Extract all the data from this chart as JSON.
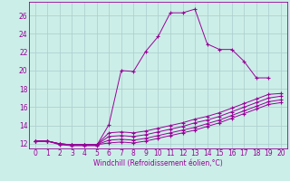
{
  "xlabel": "Windchill (Refroidissement éolien,°C)",
  "bg_color": "#cceee8",
  "grid_color": "#aacccc",
  "line_color": "#990099",
  "xlim": [
    -0.5,
    20.5
  ],
  "ylim": [
    11.5,
    27.5
  ],
  "xticks": [
    0,
    1,
    2,
    3,
    4,
    5,
    6,
    7,
    8,
    9,
    10,
    11,
    12,
    13,
    14,
    15,
    16,
    17,
    18,
    19,
    20
  ],
  "yticks": [
    12,
    14,
    16,
    18,
    20,
    22,
    24,
    26
  ],
  "line1_x": [
    0,
    1,
    2,
    3,
    4,
    5,
    6,
    7,
    8,
    9,
    10,
    11,
    12,
    13,
    14,
    15,
    16,
    17,
    18,
    19
  ],
  "line1_y": [
    12.3,
    12.3,
    11.9,
    11.8,
    11.8,
    11.8,
    14.1,
    20.0,
    19.9,
    22.1,
    23.7,
    26.3,
    26.3,
    26.7,
    22.9,
    22.3,
    22.3,
    21.0,
    19.2,
    19.2
  ],
  "line2_x": [
    0,
    1,
    2,
    3,
    4,
    5,
    6,
    7,
    8,
    9,
    10,
    11,
    12,
    13,
    14,
    15,
    16,
    17,
    18,
    19,
    20
  ],
  "line2_y": [
    12.3,
    12.3,
    12.0,
    11.9,
    11.9,
    11.9,
    13.2,
    13.3,
    13.2,
    13.4,
    13.7,
    14.0,
    14.3,
    14.7,
    15.0,
    15.4,
    15.9,
    16.4,
    16.9,
    17.4,
    17.5
  ],
  "line3_x": [
    0,
    1,
    2,
    3,
    4,
    5,
    6,
    7,
    8,
    9,
    10,
    11,
    12,
    13,
    14,
    15,
    16,
    17,
    18,
    19,
    20
  ],
  "line3_y": [
    12.3,
    12.3,
    12.0,
    11.9,
    11.9,
    11.9,
    12.8,
    12.9,
    12.8,
    13.0,
    13.3,
    13.6,
    13.9,
    14.3,
    14.6,
    15.0,
    15.5,
    16.0,
    16.5,
    17.0,
    17.2
  ],
  "line4_x": [
    0,
    1,
    2,
    3,
    4,
    5,
    6,
    7,
    8,
    9,
    10,
    11,
    12,
    13,
    14,
    15,
    16,
    17,
    18,
    19,
    20
  ],
  "line4_y": [
    12.3,
    12.3,
    12.0,
    11.9,
    11.9,
    11.9,
    12.4,
    12.5,
    12.4,
    12.6,
    12.9,
    13.2,
    13.5,
    13.8,
    14.2,
    14.6,
    15.1,
    15.6,
    16.1,
    16.6,
    16.8
  ],
  "line5_x": [
    0,
    1,
    2,
    3,
    4,
    5,
    6,
    7,
    8,
    9,
    10,
    11,
    12,
    13,
    14,
    15,
    16,
    17,
    18,
    19,
    20
  ],
  "line5_y": [
    12.3,
    12.3,
    12.0,
    11.9,
    11.9,
    11.9,
    12.1,
    12.2,
    12.1,
    12.3,
    12.6,
    12.9,
    13.2,
    13.5,
    13.9,
    14.3,
    14.8,
    15.3,
    15.8,
    16.3,
    16.5
  ]
}
